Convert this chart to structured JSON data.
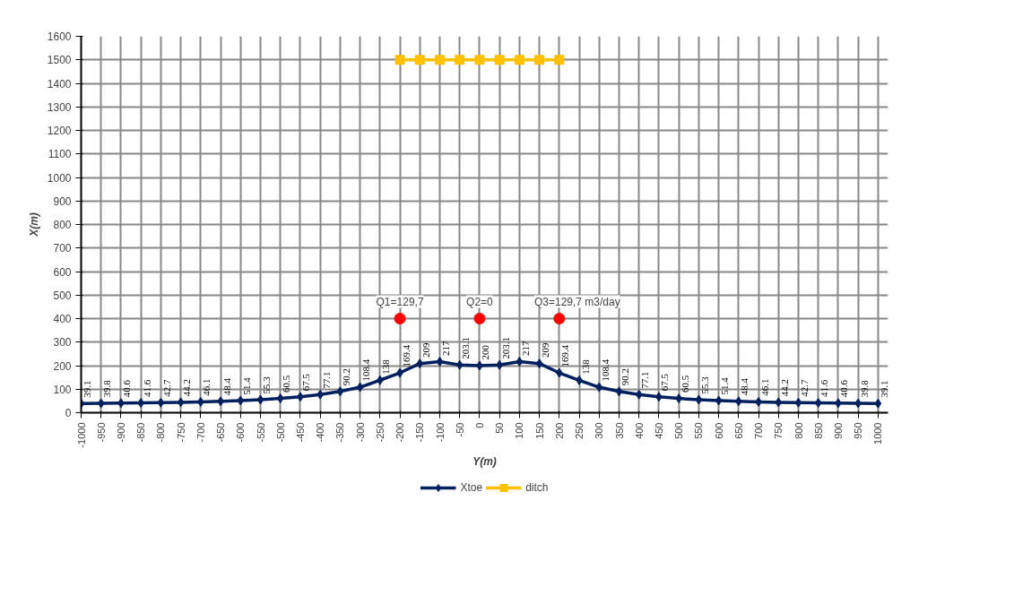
{
  "chart_data": {
    "type": "line",
    "xlabel": "Y(m)",
    "ylabel": "X(m)",
    "categories": [
      "-1000",
      "-950",
      "-900",
      "-850",
      "-800",
      "-750",
      "-700",
      "-650",
      "-600",
      "-550",
      "-500",
      "-450",
      "-400",
      "-350",
      "-300",
      "-250",
      "-200",
      "-150",
      "-100",
      "-50",
      "0",
      "50",
      "100",
      "150",
      "200",
      "250",
      "300",
      "350",
      "400",
      "450",
      "500",
      "550",
      "600",
      "650",
      "700",
      "750",
      "800",
      "850",
      "900",
      "950",
      "1000"
    ],
    "series": [
      {
        "name": "Xtoe",
        "color": "#002060",
        "marker": "diamond",
        "values": [
          39.1,
          39.8,
          40.6,
          41.6,
          42.7,
          44.2,
          46.1,
          48.4,
          51.4,
          55.3,
          60.5,
          67.5,
          77.1,
          90.2,
          108.4,
          138,
          169.4,
          209,
          217,
          203.1,
          200,
          203.1,
          217,
          209,
          169.4,
          138,
          108.4,
          90.2,
          77.1,
          67.5,
          60.5,
          55.3,
          51.4,
          48.4,
          46.1,
          44.2,
          42.7,
          41.6,
          40.6,
          39.8,
          39.1
        ],
        "value_labels": [
          "39.1",
          "39.8",
          "40.6",
          "41.6",
          "42.7",
          "44.2",
          "46.1",
          "48.4",
          "51.4",
          "55.3",
          "60.5",
          "67.5",
          "77.1",
          "90.2",
          "108.4",
          "138",
          "169.4",
          "209",
          "217",
          "203.1",
          "200",
          "203.1",
          "217",
          "209",
          "169.4",
          "138",
          "108.4",
          "90.2",
          "77.1",
          "67.5",
          "60.5",
          "55.3",
          "51.4",
          "48.4",
          "46.1",
          "44.2",
          "42.7",
          "41.6",
          "40.6",
          "39.8",
          "39.1"
        ]
      },
      {
        "name": "ditch",
        "color": "#ffc000",
        "marker": "square",
        "values": [
          null,
          null,
          null,
          null,
          null,
          null,
          null,
          null,
          null,
          null,
          null,
          null,
          null,
          null,
          null,
          null,
          1500,
          1500,
          1500,
          1500,
          1500,
          1500,
          1500,
          1500,
          1500,
          null,
          null,
          null,
          null,
          null,
          null,
          null,
          null,
          null,
          null,
          null,
          null,
          null,
          null,
          null,
          null
        ]
      },
      {
        "type": "scatter",
        "color": "#ff0000",
        "marker": "circle",
        "x": [
          "-200",
          "0",
          "200"
        ],
        "values": [
          400,
          400,
          400
        ]
      }
    ],
    "annotations": [
      {
        "text": "Q1=129,7",
        "x": "-200",
        "y": 400
      },
      {
        "text": "Q2=0",
        "x": "0",
        "y": 400
      },
      {
        "text": "Q3=129,7 m3/day",
        "x": "200",
        "y": 400
      }
    ],
    "ylim": [
      0,
      1600
    ],
    "yticks": [
      0,
      100,
      200,
      300,
      400,
      500,
      600,
      700,
      800,
      900,
      1000,
      1100,
      1200,
      1300,
      1400,
      1500,
      1600
    ],
    "grid": true,
    "legend": "bottom"
  }
}
